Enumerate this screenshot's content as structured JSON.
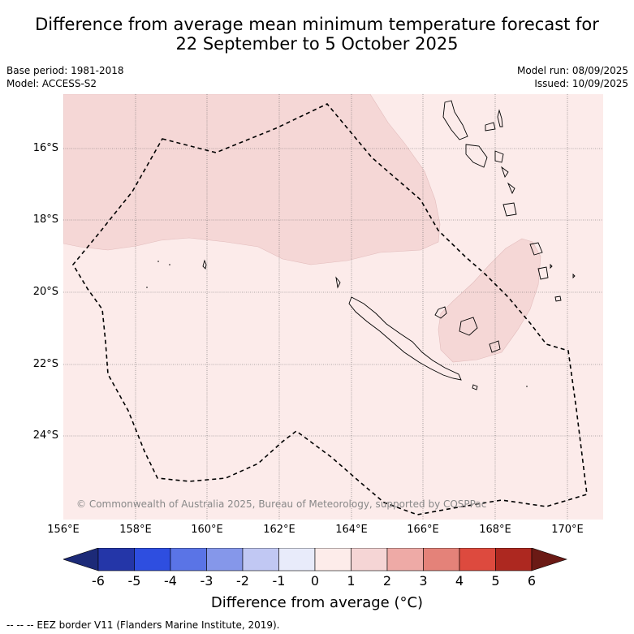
{
  "title_line1": "Difference from average mean minimum temperature forecast for",
  "title_line2": "22 September to 5 October 2025",
  "meta": {
    "base_period": "Base period: 1981-2018",
    "model": "Model: ACCESS-S2",
    "model_run": "Model run: 08/09/2025",
    "issued": "Issued: 10/09/2025"
  },
  "axes": {
    "lat_labels": [
      "16°S",
      "18°S",
      "20°S",
      "22°S",
      "24°S"
    ],
    "lon_labels": [
      "156°E",
      "158°E",
      "160°E",
      "162°E",
      "164°E",
      "166°E",
      "168°E",
      "170°E"
    ]
  },
  "copyright": "© Commonwealth of Australia 2025, Bureau of Meteorology, supported by COSPPac",
  "colorbar": {
    "ticks": [
      "-6",
      "-5",
      "-4",
      "-3",
      "-2",
      "-1",
      "0",
      "1",
      "2",
      "3",
      "4",
      "5",
      "6"
    ],
    "colors": [
      "#1c2a78",
      "#2436a8",
      "#2e4ee0",
      "#5a74e6",
      "#8597ea",
      "#c1c8f3",
      "#e8ebfa",
      "#fdecea",
      "#f5d5d5",
      "#eeaaa6",
      "#e48279",
      "#dd4a3e",
      "#ad2820",
      "#6b1a15"
    ],
    "label": "Difference from average (°C)"
  },
  "legend_note": "-- -- -- EEZ border V11 (Flanders Marine Institute, 2019).",
  "map_colors": {
    "background": "#fcebea",
    "anomaly_1_2": "#f5d7d6"
  }
}
